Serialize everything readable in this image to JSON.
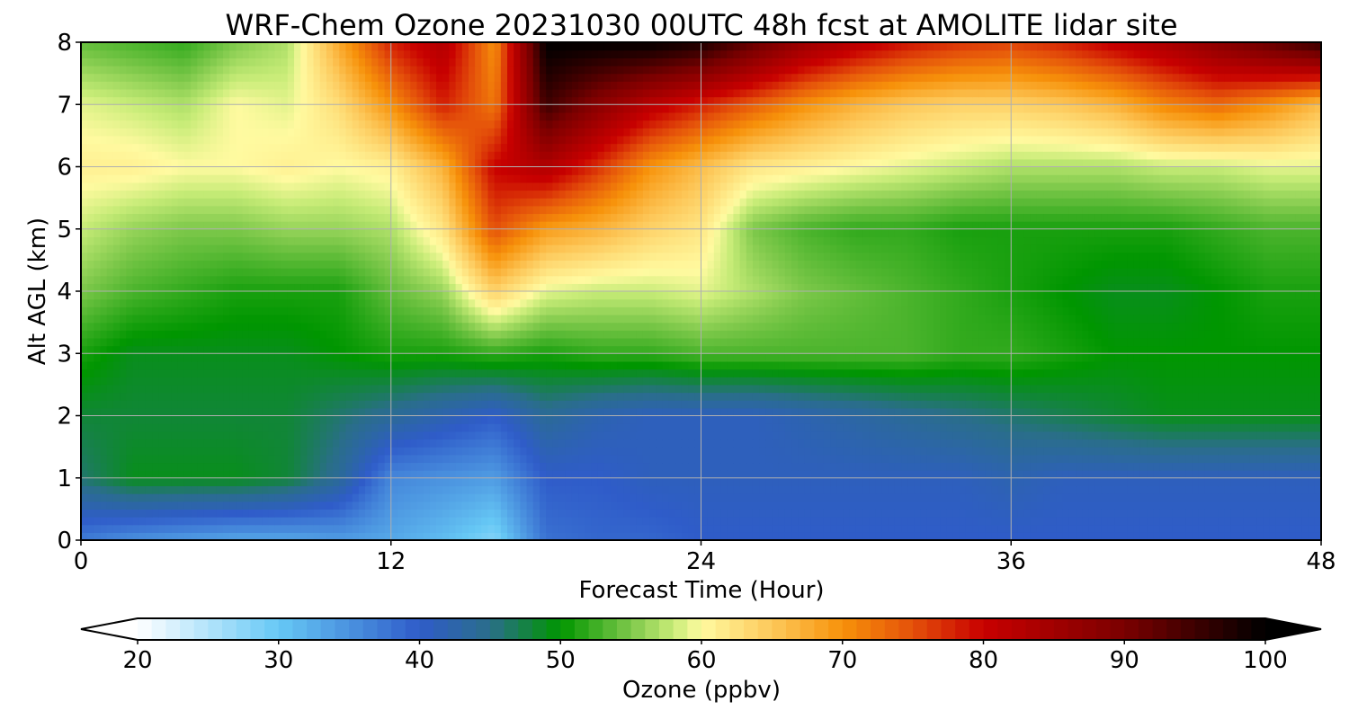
{
  "chart_data": {
    "type": "heatmap",
    "title": "WRF-Chem Ozone  20231030 00UTC 48h fcst at AMOLITE lidar site",
    "xlabel": "Forecast Time (Hour)",
    "ylabel": "Alt AGL (km)",
    "xlim": [
      0,
      48
    ],
    "ylim": [
      0,
      8
    ],
    "xticks": [
      0,
      12,
      24,
      36,
      48
    ],
    "yticks": [
      0,
      1,
      2,
      3,
      4,
      5,
      6,
      7,
      8
    ],
    "grid": true,
    "colorbar": {
      "label": "Ozone  (ppbv)",
      "min": 20,
      "max": 100,
      "ticks": [
        20,
        30,
        40,
        50,
        60,
        70,
        80,
        90,
        100
      ],
      "extend": "both",
      "stops": [
        {
          "value": 20,
          "color": "#ffffff"
        },
        {
          "value": 30,
          "color": "#66c8f5"
        },
        {
          "value": 40,
          "color": "#2f5cc9"
        },
        {
          "value": 45,
          "color": "#2a6e8a"
        },
        {
          "value": 50,
          "color": "#009600"
        },
        {
          "value": 55,
          "color": "#7dc84a"
        },
        {
          "value": 58,
          "color": "#c8ec78"
        },
        {
          "value": 60,
          "color": "#fffaa0"
        },
        {
          "value": 65,
          "color": "#fdc85a"
        },
        {
          "value": 70,
          "color": "#f7920a"
        },
        {
          "value": 75,
          "color": "#e4500a"
        },
        {
          "value": 80,
          "color": "#c80000"
        },
        {
          "value": 90,
          "color": "#7a0000"
        },
        {
          "value": 100,
          "color": "#000000"
        }
      ]
    },
    "hours": [
      0,
      2,
      4,
      6,
      8,
      10,
      12,
      14,
      16,
      18,
      20,
      22,
      24,
      26,
      28,
      30,
      32,
      34,
      36,
      38,
      40,
      42,
      44,
      46,
      48
    ],
    "altitudes_km": [
      0,
      1,
      2,
      3,
      4,
      5,
      6,
      7,
      8
    ],
    "ozone_ppbv": [
      [
        37,
        35,
        34,
        33,
        33,
        34,
        33,
        31,
        28,
        38,
        39,
        39,
        40,
        40,
        40,
        40,
        40,
        40,
        40,
        40,
        40,
        40,
        40,
        40,
        40
      ],
      [
        46,
        49,
        49,
        49,
        48,
        44,
        36,
        35,
        34,
        40,
        40,
        41,
        41,
        41,
        41,
        41,
        41,
        41,
        42,
        41,
        41,
        41,
        41,
        41,
        41
      ],
      [
        48,
        48,
        48,
        48,
        48,
        46,
        44,
        42,
        40,
        44,
        42,
        41,
        41,
        41,
        42,
        43,
        44,
        45,
        46,
        47,
        48,
        49,
        49,
        49,
        49
      ],
      [
        51,
        49,
        49,
        49,
        49,
        50,
        51,
        51,
        52,
        51,
        52,
        52,
        53,
        53,
        53,
        53,
        53,
        52,
        52,
        51,
        50,
        50,
        50,
        50,
        50
      ],
      [
        55,
        53,
        52,
        51,
        51,
        51,
        54,
        56,
        64,
        59,
        58,
        58,
        59,
        57,
        55,
        54,
        53,
        52,
        51,
        50,
        49,
        49,
        50,
        51,
        51
      ],
      [
        58,
        56,
        55,
        55,
        56,
        56,
        57,
        62,
        75,
        69,
        67,
        64,
        62,
        55,
        53,
        52,
        52,
        51,
        51,
        51,
        51,
        51,
        52,
        53,
        53
      ],
      [
        61,
        61,
        60,
        60,
        61,
        60,
        61,
        67,
        80,
        83,
        77,
        70,
        66,
        62,
        61,
        60,
        59,
        58,
        57,
        57,
        57,
        58,
        58,
        59,
        59
      ],
      [
        59,
        58,
        57,
        60,
        59,
        63,
        70,
        78,
        72,
        95,
        88,
        82,
        78,
        74,
        70,
        67,
        65,
        64,
        64,
        65,
        67,
        71,
        73,
        70,
        66
      ],
      [
        54,
        53,
        52,
        55,
        57,
        68,
        78,
        83,
        70,
        100,
        100,
        100,
        98,
        92,
        86,
        82,
        79,
        77,
        76,
        78,
        81,
        84,
        88,
        92,
        96
      ]
    ]
  }
}
